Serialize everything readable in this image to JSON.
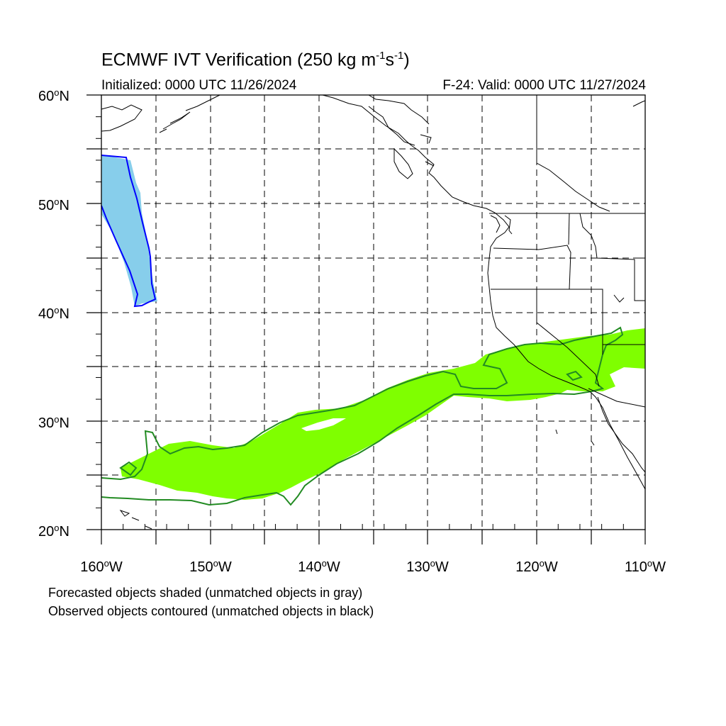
{
  "title": {
    "main": "ECMWF IVT Verification (250 kg m",
    "sup1": "-1",
    "mid": "s",
    "sup2": "-1",
    "end": ")"
  },
  "initialized": "Initialized: 0000 UTC 11/26/2024",
  "valid": "F-24: Valid: 0000 UTC 11/27/2024",
  "lat_labels": [
    {
      "deg": "60",
      "h": "N"
    },
    {
      "deg": "50",
      "h": "N"
    },
    {
      "deg": "40",
      "h": "N"
    },
    {
      "deg": "30",
      "h": "N"
    },
    {
      "deg": "20",
      "h": "N"
    }
  ],
  "lon_labels": [
    {
      "deg": "160",
      "h": "W"
    },
    {
      "deg": "150",
      "h": "W"
    },
    {
      "deg": "140",
      "h": "W"
    },
    {
      "deg": "130",
      "h": "W"
    },
    {
      "deg": "120",
      "h": "W"
    },
    {
      "deg": "110",
      "h": "W"
    }
  ],
  "notes": {
    "line1": "Forecasted objects shaded (unmatched objects in gray)",
    "line2": "Observed objects contoured (unmatched objects in black)"
  },
  "colors": {
    "forecast_blue_fill": "#87ceeb",
    "observed_blue_contour": "#0000ff",
    "forecast_green_fill": "#7fff00",
    "observed_green_contour": "#228b22",
    "coastline": "#000000"
  }
}
